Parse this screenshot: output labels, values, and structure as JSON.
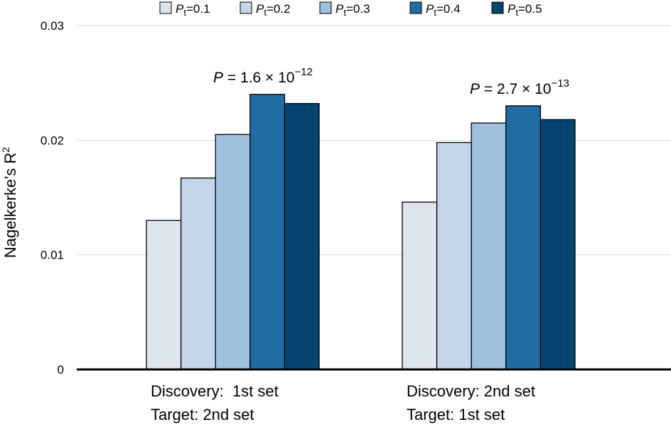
{
  "chart_data": {
    "type": "bar",
    "ylabel": "Nagelkerke's R",
    "ylabel_sup": "2",
    "ylim": [
      0,
      0.03
    ],
    "yticks": [
      {
        "value": 0,
        "label": "0"
      },
      {
        "value": 0.01,
        "label": "0.01"
      },
      {
        "value": 0.02,
        "label": "0.02"
      },
      {
        "value": 0.03,
        "label": "0.03"
      }
    ],
    "grid": true,
    "legend_position": "top",
    "categories": [
      {
        "line1": "Discovery:  1st set",
        "line2": "Target: 2nd set"
      },
      {
        "line1": "Discovery: 2nd set",
        "line2": "Target: 1st set"
      }
    ],
    "series": [
      {
        "name": "Pt=0.1",
        "label_var": "P",
        "label_sub": "t",
        "label_rest": "=0.1",
        "color": "#dfe5ec",
        "values": [
          0.013,
          0.0146
        ]
      },
      {
        "name": "Pt=0.2",
        "label_var": "P",
        "label_sub": "t",
        "label_rest": "=0.2",
        "color": "#c2d5e9",
        "values": [
          0.0167,
          0.0198
        ]
      },
      {
        "name": "Pt=0.3",
        "label_var": "P",
        "label_sub": "t",
        "label_rest": "=0.3",
        "color": "#9fc0dd",
        "values": [
          0.0205,
          0.0215
        ]
      },
      {
        "name": "Pt=0.4",
        "label_var": "P",
        "label_sub": "t",
        "label_rest": "=0.4",
        "color": "#226ca4",
        "values": [
          0.024,
          0.023
        ]
      },
      {
        "name": "Pt=0.5",
        "label_var": "P",
        "label_sub": "t",
        "label_rest": "=0.5",
        "color": "#03456f",
        "values": [
          0.0232,
          0.0218
        ]
      }
    ],
    "annotations": [
      {
        "var": "P",
        "text": " = 1.6 × 10",
        "exp": "−12"
      },
      {
        "var": "P",
        "text": " = 2.7 × 10",
        "exp": "−13"
      }
    ]
  }
}
